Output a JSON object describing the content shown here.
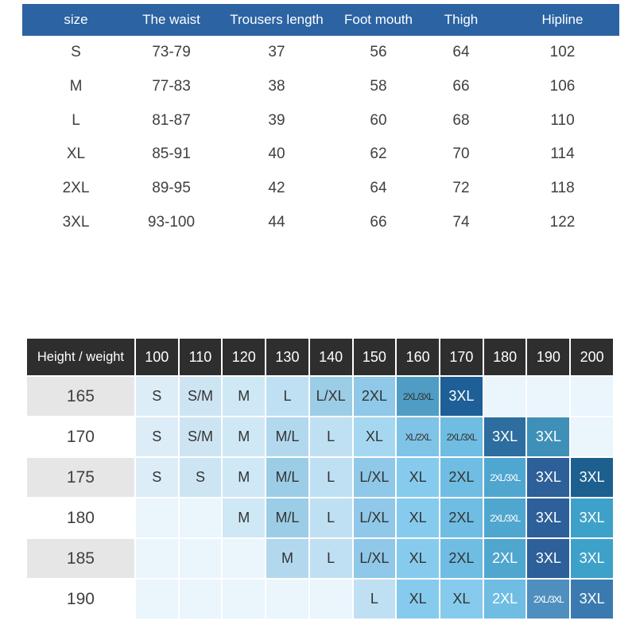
{
  "size_chart": {
    "headers": [
      "size",
      "The waist",
      "Trousers length",
      "Foot mouth",
      "Thigh",
      "Hipline"
    ],
    "rows": [
      [
        "S",
        "73-79",
        "37",
        "56",
        "64",
        "102"
      ],
      [
        "M",
        "77-83",
        "38",
        "58",
        "66",
        "106"
      ],
      [
        "L",
        "81-87",
        "39",
        "60",
        "68",
        "110"
      ],
      [
        "XL",
        "85-91",
        "40",
        "62",
        "70",
        "114"
      ],
      [
        "2XL",
        "89-95",
        "42",
        "64",
        "72",
        "118"
      ],
      [
        "3XL",
        "93-100",
        "44",
        "66",
        "74",
        "122"
      ]
    ],
    "header_color": "#2b63a3"
  },
  "recommendation_chart": {
    "corner_label": "Height / weight",
    "weights": [
      "100",
      "110",
      "120",
      "130",
      "140",
      "150",
      "160",
      "170",
      "180",
      "190",
      "200"
    ],
    "header_color": "#2e2e2e",
    "rows": [
      {
        "height": "165",
        "height_bg": "#e6e6e6",
        "cells": [
          {
            "v": "S",
            "bg": "#dcedf8"
          },
          {
            "v": "S/M",
            "bg": "#cde5f3"
          },
          {
            "v": "M",
            "bg": "#cfe8f5"
          },
          {
            "v": "L",
            "bg": "#bfe0f3"
          },
          {
            "v": "L/XL",
            "bg": "#9ccde6"
          },
          {
            "v": "2XL",
            "bg": "#8fc8e8"
          },
          {
            "v": "2XL/3XL",
            "bg": "#4f9dc4"
          },
          {
            "v": "3XL",
            "bg": "#1d5f96",
            "light": true
          },
          {
            "v": "",
            "bg": "#eaf5fc"
          },
          {
            "v": "",
            "bg": "#eaf5fc"
          },
          {
            "v": "",
            "bg": "#eaf5fc"
          }
        ]
      },
      {
        "height": "170",
        "height_bg": "#ffffff",
        "cells": [
          {
            "v": "S",
            "bg": "#dcedf8"
          },
          {
            "v": "S/M",
            "bg": "#cde5f3"
          },
          {
            "v": "M",
            "bg": "#cfe8f5"
          },
          {
            "v": "M/L",
            "bg": "#b2d8ee"
          },
          {
            "v": "L",
            "bg": "#bfe0f3"
          },
          {
            "v": "XL",
            "bg": "#a6d7f1"
          },
          {
            "v": "XL/2XL",
            "bg": "#7fc3e6"
          },
          {
            "v": "2XL/3XL",
            "bg": "#6fbde3"
          },
          {
            "v": "3XL",
            "bg": "#2d6d9f",
            "light": true
          },
          {
            "v": "3XL",
            "bg": "#3e90b8",
            "light": true
          },
          {
            "v": "",
            "bg": "#eaf5fc"
          }
        ]
      },
      {
        "height": "175",
        "height_bg": "#e6e6e6",
        "cells": [
          {
            "v": "S",
            "bg": "#dcedf8"
          },
          {
            "v": "S",
            "bg": "#cde5f3"
          },
          {
            "v": "M",
            "bg": "#cfe8f5"
          },
          {
            "v": "M/L",
            "bg": "#9ccde6"
          },
          {
            "v": "L",
            "bg": "#bfe0f3"
          },
          {
            "v": "L/XL",
            "bg": "#8fc8e8"
          },
          {
            "v": "XL",
            "bg": "#86cbed"
          },
          {
            "v": "2XL",
            "bg": "#6fbde3"
          },
          {
            "v": "2XL/3XL",
            "bg": "#4fa6cf",
            "light": true
          },
          {
            "v": "3XL",
            "bg": "#2d5f99",
            "light": true
          },
          {
            "v": "3XL",
            "bg": "#1d5f8f",
            "light": true
          }
        ]
      },
      {
        "height": "180",
        "height_bg": "#ffffff",
        "cells": [
          {
            "v": "",
            "bg": "#eaf5fc"
          },
          {
            "v": "",
            "bg": "#eaf5fc"
          },
          {
            "v": "M",
            "bg": "#cfe8f5"
          },
          {
            "v": "M/L",
            "bg": "#9ccde6"
          },
          {
            "v": "L",
            "bg": "#bfe0f3"
          },
          {
            "v": "L/XL",
            "bg": "#8fc8e8"
          },
          {
            "v": "XL",
            "bg": "#86cbed"
          },
          {
            "v": "2XL",
            "bg": "#6fbde3"
          },
          {
            "v": "2XL/3XL",
            "bg": "#4fa6cf",
            "light": true
          },
          {
            "v": "3XL",
            "bg": "#2d5f99",
            "light": true
          },
          {
            "v": "3XL",
            "bg": "#3ea1c9",
            "light": true
          }
        ]
      },
      {
        "height": "185",
        "height_bg": "#e6e6e6",
        "cells": [
          {
            "v": "",
            "bg": "#eaf5fc"
          },
          {
            "v": "",
            "bg": "#eaf5fc"
          },
          {
            "v": "",
            "bg": "#eaf5fc"
          },
          {
            "v": "M",
            "bg": "#b2d8ee"
          },
          {
            "v": "L",
            "bg": "#bfe0f3"
          },
          {
            "v": "L/XL",
            "bg": "#8fc8e8"
          },
          {
            "v": "XL",
            "bg": "#86cbed"
          },
          {
            "v": "2XL",
            "bg": "#6fbde3"
          },
          {
            "v": "2XL",
            "bg": "#4fa6cf",
            "light": true
          },
          {
            "v": "3XL",
            "bg": "#2d5f99",
            "light": true
          },
          {
            "v": "3XL",
            "bg": "#3ea1c9",
            "light": true
          }
        ]
      },
      {
        "height": "190",
        "height_bg": "#ffffff",
        "cells": [
          {
            "v": "",
            "bg": "#eaf5fc"
          },
          {
            "v": "",
            "bg": "#eaf5fc"
          },
          {
            "v": "",
            "bg": "#eaf5fc"
          },
          {
            "v": "",
            "bg": "#eaf5fc"
          },
          {
            "v": "",
            "bg": "#eaf5fc"
          },
          {
            "v": "L",
            "bg": "#bfe0f3"
          },
          {
            "v": "XL",
            "bg": "#86cbed"
          },
          {
            "v": "XL",
            "bg": "#86cbed"
          },
          {
            "v": "2XL",
            "bg": "#6fbde3",
            "light": true
          },
          {
            "v": "2XL/3XL",
            "bg": "#4f8fbf",
            "light": true
          },
          {
            "v": "3XL",
            "bg": "#3b7ab0",
            "light": true
          }
        ]
      }
    ]
  }
}
